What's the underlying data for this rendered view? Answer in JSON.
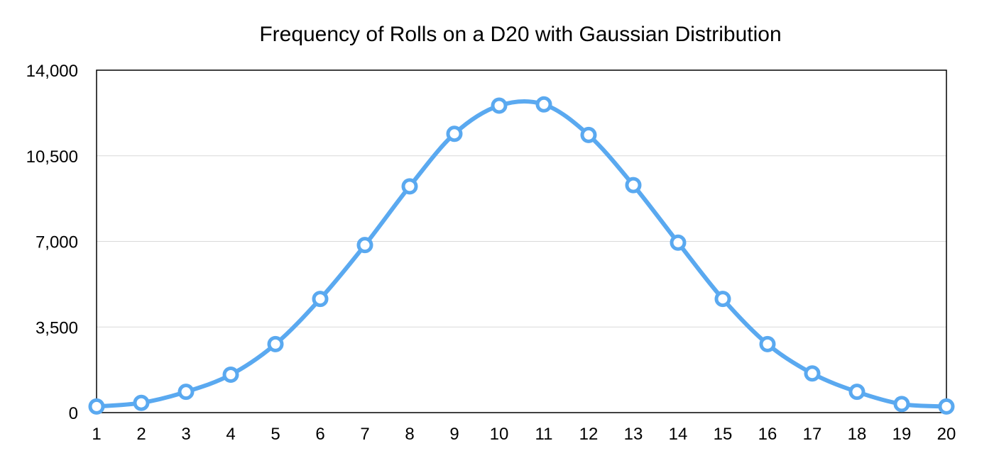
{
  "chart_data": {
    "type": "line",
    "title": "Frequency of Rolls on a D20 with Gaussian Distribution",
    "xlabel": "",
    "ylabel": "",
    "categories": [
      "1",
      "2",
      "3",
      "4",
      "5",
      "6",
      "7",
      "8",
      "9",
      "10",
      "11",
      "12",
      "13",
      "14",
      "15",
      "16",
      "17",
      "18",
      "19",
      "20"
    ],
    "series": [
      {
        "values": [
          250,
          400,
          850,
          1550,
          2800,
          4650,
          6850,
          9250,
          11400,
          12550,
          12600,
          11350,
          9300,
          6950,
          4650,
          2800,
          1600,
          850,
          350,
          250
        ]
      }
    ],
    "ylim": [
      0,
      14000
    ],
    "yticks": [
      0,
      3500,
      7000,
      10500,
      14000
    ],
    "ytick_labels": [
      "0",
      "3,500",
      "7,000",
      "10,500",
      "14,000"
    ],
    "grid": "horizontal",
    "smooth": true,
    "markers": "hollow-circle",
    "colors": {
      "line": "#5aa9f0",
      "marker_fill": "#ffffff",
      "grid": "#d9d9d9",
      "axis": "#000000"
    }
  }
}
